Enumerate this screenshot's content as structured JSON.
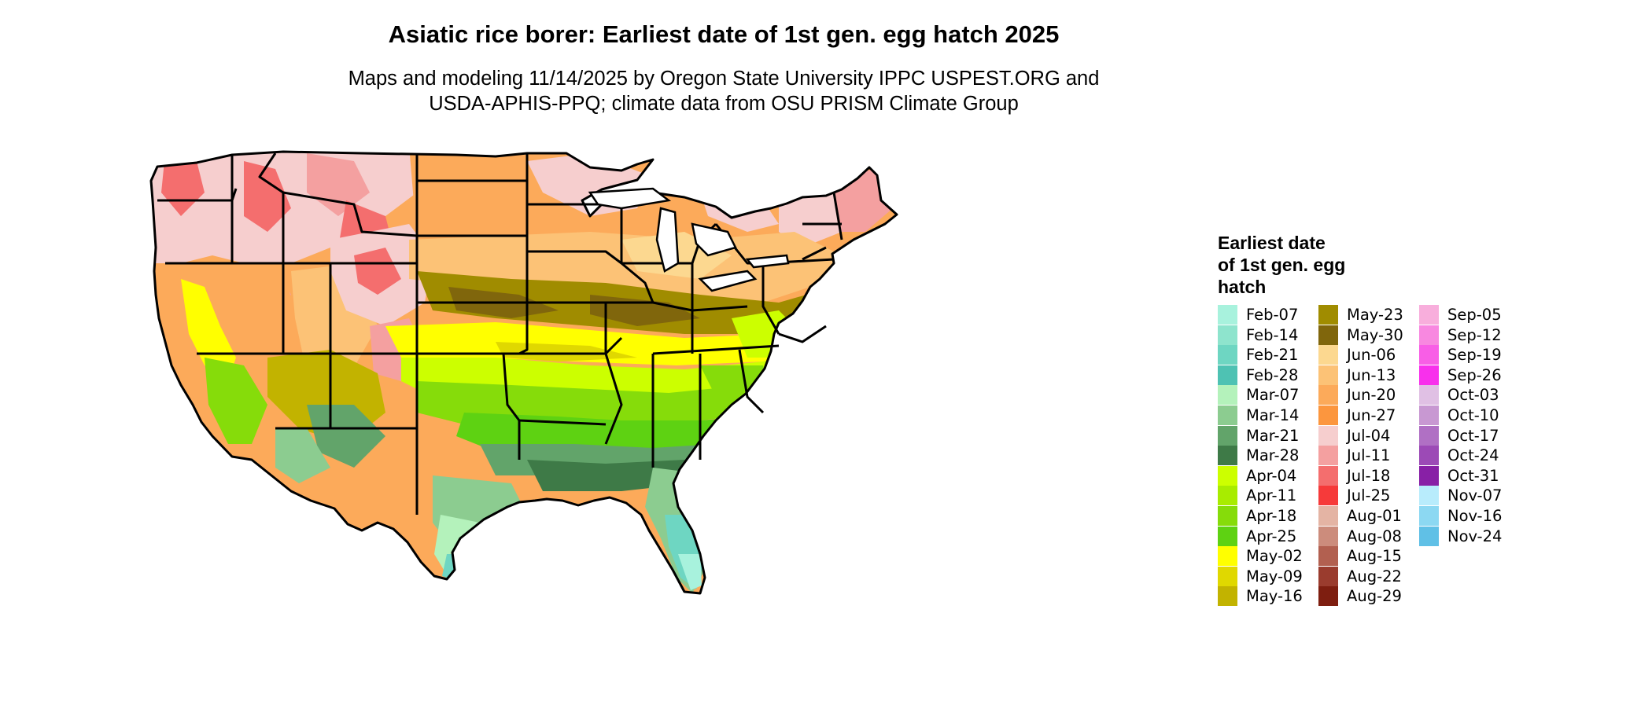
{
  "title": "Asiatic rice borer: Earliest date of 1st gen. egg hatch 2025",
  "subtitle_line1": "Maps and modeling 11/14/2025 by Oregon State University IPPC USPEST.ORG and",
  "subtitle_line2": "USDA-APHIS-PPQ; climate data from OSU PRISM Climate Group",
  "legend": {
    "title_line1": "Earliest date",
    "title_line2": "of 1st gen. egg",
    "title_line3": "hatch",
    "columns": [
      [
        {
          "label": "Feb-07",
          "color": "#a8f2dd"
        },
        {
          "label": "Feb-14",
          "color": "#8ee4cd"
        },
        {
          "label": "Feb-21",
          "color": "#6ed6c2"
        },
        {
          "label": "Feb-28",
          "color": "#4ec2b3"
        },
        {
          "label": "Mar-07",
          "color": "#b4f2bb"
        },
        {
          "label": "Mar-14",
          "color": "#8ccc90"
        },
        {
          "label": "Mar-21",
          "color": "#62a46a"
        },
        {
          "label": "Mar-28",
          "color": "#3e7a47"
        },
        {
          "label": "Apr-04",
          "color": "#ccff00"
        },
        {
          "label": "Apr-11",
          "color": "#a8ec00"
        },
        {
          "label": "Apr-18",
          "color": "#86dc0a"
        },
        {
          "label": "Apr-25",
          "color": "#5ed212"
        },
        {
          "label": "May-02",
          "color": "#ffff00"
        },
        {
          "label": "May-09",
          "color": "#e0d800"
        },
        {
          "label": "May-16",
          "color": "#c2b300"
        }
      ],
      [
        {
          "label": "May-23",
          "color": "#a08c00"
        },
        {
          "label": "May-30",
          "color": "#80660c"
        },
        {
          "label": "Jun-06",
          "color": "#fcd890"
        },
        {
          "label": "Jun-13",
          "color": "#fcc276"
        },
        {
          "label": "Jun-20",
          "color": "#fcaa5a"
        },
        {
          "label": "Jun-27",
          "color": "#fc963e"
        },
        {
          "label": "Jul-04",
          "color": "#f6cece"
        },
        {
          "label": "Jul-11",
          "color": "#f4a0a0"
        },
        {
          "label": "Jul-18",
          "color": "#f46e6e"
        },
        {
          "label": "Jul-25",
          "color": "#f63a3a"
        },
        {
          "label": "Aug-01",
          "color": "#e4b4a4"
        },
        {
          "label": "Aug-08",
          "color": "#cc8c7c"
        },
        {
          "label": "Aug-15",
          "color": "#b26050"
        },
        {
          "label": "Aug-22",
          "color": "#9a3c2e"
        },
        {
          "label": "Aug-29",
          "color": "#7e1e10"
        }
      ],
      [
        {
          "label": "Sep-05",
          "color": "#f8aedc"
        },
        {
          "label": "Sep-12",
          "color": "#f888e0"
        },
        {
          "label": "Sep-19",
          "color": "#f85ee6"
        },
        {
          "label": "Sep-26",
          "color": "#f830ec"
        },
        {
          "label": "Oct-03",
          "color": "#e0c0e4"
        },
        {
          "label": "Oct-10",
          "color": "#c898d2"
        },
        {
          "label": "Oct-17",
          "color": "#b070c4"
        },
        {
          "label": "Oct-24",
          "color": "#9c4ab6"
        },
        {
          "label": "Oct-31",
          "color": "#8820a6"
        },
        {
          "label": "Nov-07",
          "color": "#b8ecfc"
        },
        {
          "label": "Nov-16",
          "color": "#8cd8f2"
        },
        {
          "label": "Nov-24",
          "color": "#60c0e6"
        }
      ]
    ]
  },
  "map_colors": {
    "background_orange": "#fcaa5a",
    "light_orange": "#fcc276",
    "pale_orange": "#fcd890",
    "pink": "#f6cece",
    "red": "#f46e6e",
    "olive": "#a08c00",
    "dark_olive": "#80660c",
    "olive_light": "#c2b300",
    "yellow": "#ffff00",
    "yellow_green": "#ccff00",
    "green": "#86dc0a",
    "green2": "#5ed212",
    "dark_green": "#3e7a47",
    "mid_green": "#62a46a",
    "light_green": "#8ccc90",
    "mint": "#b4f2bb",
    "teal": "#6ed6c2",
    "teal_light": "#a8f2dd"
  }
}
